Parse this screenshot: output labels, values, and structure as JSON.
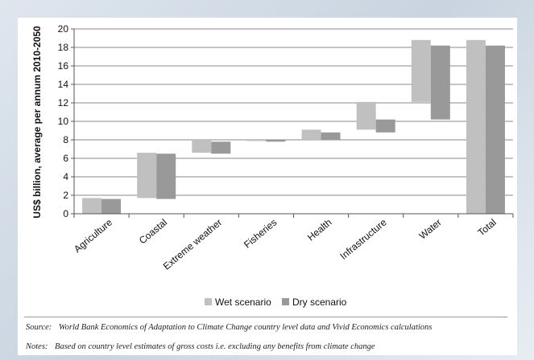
{
  "chart_data": {
    "type": "bar",
    "subtype": "floating-range",
    "ylabel": "US$ billion, average per annum 2010-2050",
    "ylim": [
      0,
      20
    ],
    "yticks": [
      0,
      2,
      4,
      6,
      8,
      10,
      12,
      14,
      16,
      18,
      20
    ],
    "grid": true,
    "legend_position": "bottom",
    "categories": [
      "Agriculture",
      "Coastal",
      "Extreme weather",
      "Fisheries",
      "Health",
      "Infrastructure",
      "Water",
      "Total"
    ],
    "series": [
      {
        "name": "Wet scenario",
        "color": "#c0c0c0",
        "ranges": [
          [
            0,
            1.7
          ],
          [
            1.7,
            6.6
          ],
          [
            6.6,
            8.0
          ],
          [
            7.9,
            8.0
          ],
          [
            8.0,
            9.1
          ],
          [
            9.1,
            12.1
          ],
          [
            12.1,
            18.8
          ],
          [
            0,
            18.8
          ]
        ]
      },
      {
        "name": "Dry scenario",
        "color": "#999999",
        "ranges": [
          [
            0,
            1.6
          ],
          [
            1.6,
            6.5
          ],
          [
            6.5,
            7.8
          ],
          [
            7.8,
            7.95
          ],
          [
            7.95,
            8.8
          ],
          [
            8.8,
            10.2
          ],
          [
            10.2,
            18.2
          ],
          [
            0,
            18.2
          ]
        ]
      }
    ]
  },
  "footnotes": {
    "source_label": "Source:",
    "source_text": "World Bank Economics of Adaptation to Climate Change country level data and Vivid Economics calculations",
    "notes_label": "Notes:",
    "notes_text": "Based on country level estimates of gross costs i.e. excluding any benefits from climate change"
  }
}
